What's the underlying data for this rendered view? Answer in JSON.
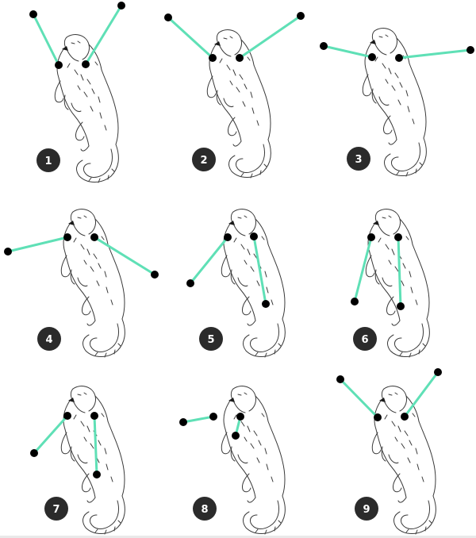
{
  "colors": {
    "line": "#5fe0b6",
    "joint": "#000000",
    "badge_bg": "#2b2b2b",
    "badge_text": "#ffffff",
    "sketch": "#3a3a3a"
  },
  "panels": [
    {
      "label": "1",
      "pose": "both-up"
    },
    {
      "label": "2",
      "pose": "both-up-wide"
    },
    {
      "label": "3",
      "pose": "both-horizontal"
    },
    {
      "label": "4",
      "pose": "left-horizontal-right-down"
    },
    {
      "label": "5",
      "pose": "left-down-right-down"
    },
    {
      "label": "6",
      "pose": "both-down"
    },
    {
      "label": "7",
      "pose": "left-down-right-down"
    },
    {
      "label": "8",
      "pose": "left-horizontal-right-down-short"
    },
    {
      "label": "9",
      "pose": "both-up"
    }
  ]
}
